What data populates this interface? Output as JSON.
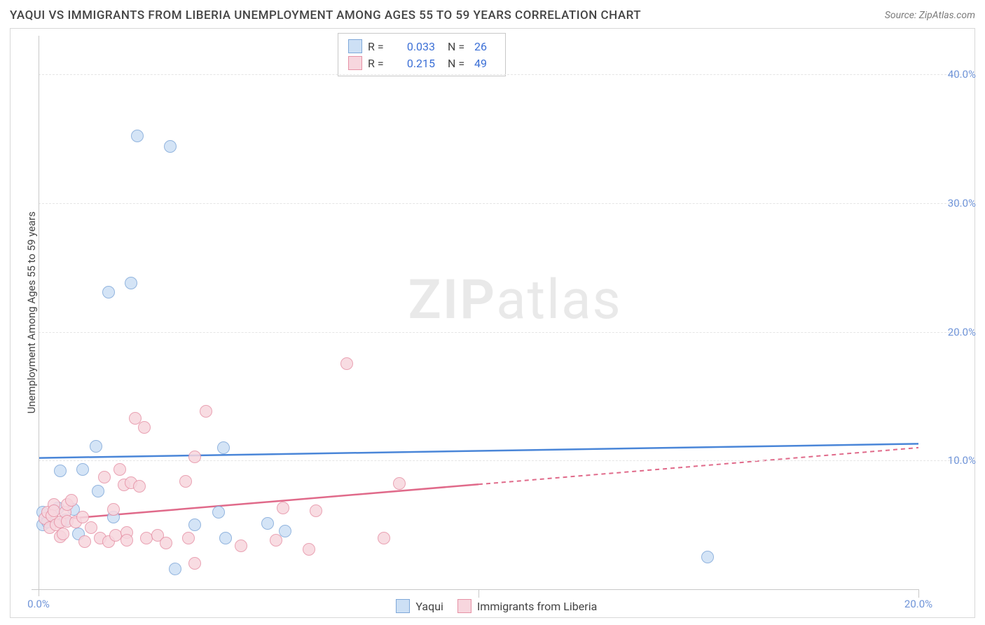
{
  "title": "YAQUI VS IMMIGRANTS FROM LIBERIA UNEMPLOYMENT AMONG AGES 55 TO 59 YEARS CORRELATION CHART",
  "source": "Source: ZipAtlas.com",
  "watermark_left": "ZIP",
  "watermark_right": "atlas",
  "y_axis_label": "Unemployment Among Ages 55 to 59 years",
  "chart": {
    "type": "scatter",
    "background_color": "#ffffff",
    "grid_color": "#e5e5e5",
    "axis_color": "#c8c8c8",
    "tick_label_color": "#6f94d8",
    "xlim": [
      0,
      20
    ],
    "ylim": [
      0,
      43
    ],
    "y_ticks": [
      10,
      20,
      30,
      40
    ],
    "y_tick_labels": [
      "10.0%",
      "20.0%",
      "30.0%",
      "40.0%"
    ],
    "x_ticks": [
      0,
      20
    ],
    "x_tick_labels": [
      "0.0%",
      "20.0%"
    ],
    "x_inner_tick": 10,
    "point_radius": 9,
    "series": [
      {
        "name": "Yaqui",
        "fill": "#cde0f5",
        "stroke": "#7fa8d9",
        "r_value": "0.033",
        "n_value": "26",
        "trend": {
          "x1": 0,
          "y1": 10.2,
          "x2": 20,
          "y2": 11.3,
          "color": "#4a86d8",
          "dash_from_x": null
        },
        "points": [
          [
            0.1,
            6.0
          ],
          [
            0.1,
            5.0
          ],
          [
            0.2,
            5.2
          ],
          [
            0.45,
            6.3
          ],
          [
            0.5,
            9.2
          ],
          [
            0.6,
            5.4
          ],
          [
            0.8,
            6.2
          ],
          [
            0.9,
            4.3
          ],
          [
            1.0,
            9.3
          ],
          [
            1.3,
            11.1
          ],
          [
            1.35,
            7.6
          ],
          [
            1.6,
            23.1
          ],
          [
            1.7,
            5.6
          ],
          [
            2.1,
            23.8
          ],
          [
            2.25,
            35.2
          ],
          [
            3.0,
            34.4
          ],
          [
            3.1,
            1.6
          ],
          [
            3.55,
            5.0
          ],
          [
            4.1,
            6.0
          ],
          [
            4.2,
            11.0
          ],
          [
            4.25,
            4.0
          ],
          [
            5.2,
            5.1
          ],
          [
            5.6,
            4.5
          ],
          [
            15.2,
            2.5
          ]
        ]
      },
      {
        "name": "Immigrants from Liberia",
        "fill": "#f7d6de",
        "stroke": "#e692a6",
        "r_value": "0.215",
        "n_value": "49",
        "trend": {
          "x1": 0,
          "y1": 5.3,
          "x2": 20,
          "y2": 11.0,
          "color": "#e06a8a",
          "dash_from_x": 10
        },
        "points": [
          [
            0.15,
            5.5
          ],
          [
            0.2,
            6.0
          ],
          [
            0.25,
            4.8
          ],
          [
            0.35,
            6.6
          ],
          [
            0.3,
            5.7
          ],
          [
            0.35,
            6.1
          ],
          [
            0.4,
            5.0
          ],
          [
            0.5,
            5.2
          ],
          [
            0.5,
            4.1
          ],
          [
            0.55,
            4.3
          ],
          [
            0.6,
            6.0
          ],
          [
            0.65,
            6.6
          ],
          [
            0.65,
            5.3
          ],
          [
            0.75,
            6.9
          ],
          [
            0.85,
            5.2
          ],
          [
            1.0,
            5.6
          ],
          [
            1.05,
            3.7
          ],
          [
            1.2,
            4.8
          ],
          [
            1.4,
            4.0
          ],
          [
            1.5,
            8.7
          ],
          [
            1.6,
            3.7
          ],
          [
            1.7,
            6.2
          ],
          [
            1.75,
            4.2
          ],
          [
            1.85,
            9.3
          ],
          [
            1.95,
            8.1
          ],
          [
            2.0,
            4.4
          ],
          [
            2.0,
            3.8
          ],
          [
            2.1,
            8.3
          ],
          [
            2.2,
            13.3
          ],
          [
            2.3,
            8.0
          ],
          [
            2.4,
            12.6
          ],
          [
            2.45,
            4.0
          ],
          [
            2.7,
            4.2
          ],
          [
            2.9,
            3.6
          ],
          [
            3.35,
            8.4
          ],
          [
            3.4,
            4.0
          ],
          [
            3.55,
            10.3
          ],
          [
            3.55,
            2.0
          ],
          [
            3.8,
            13.8
          ],
          [
            4.6,
            3.4
          ],
          [
            5.4,
            3.8
          ],
          [
            5.55,
            6.3
          ],
          [
            6.15,
            3.1
          ],
          [
            6.3,
            6.1
          ],
          [
            7.0,
            17.5
          ],
          [
            7.85,
            4.0
          ],
          [
            8.2,
            8.2
          ]
        ]
      }
    ]
  },
  "legend_bottom": [
    {
      "label": "Yaqui",
      "fill": "#cde0f5",
      "stroke": "#7fa8d9"
    },
    {
      "label": "Immigrants from Liberia",
      "fill": "#f7d6de",
      "stroke": "#e692a6"
    }
  ]
}
